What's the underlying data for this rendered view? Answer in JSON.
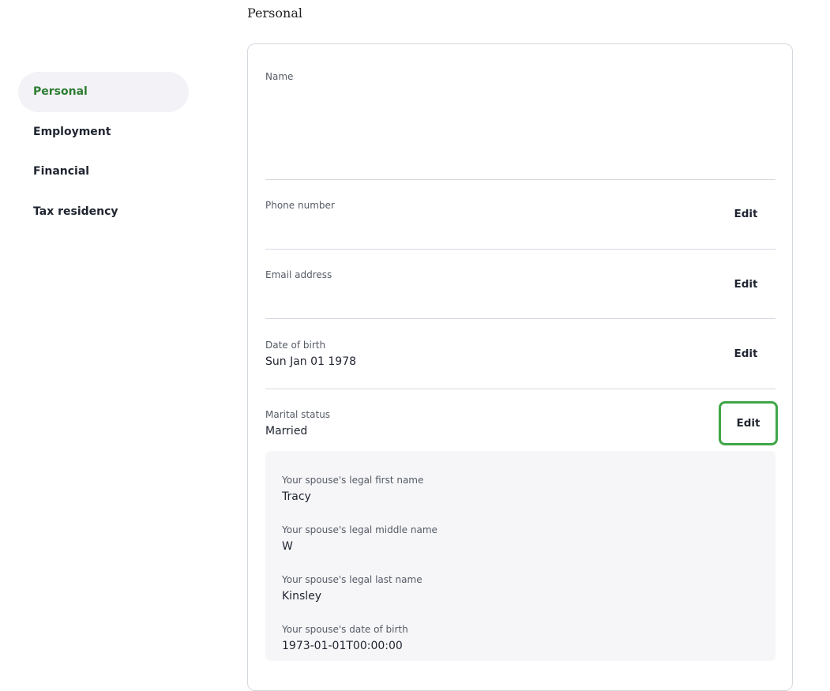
{
  "page_title": "Personal",
  "sidebar": {
    "items": [
      {
        "label": "Personal",
        "active": true
      },
      {
        "label": "Employment"
      },
      {
        "label": "Financial"
      },
      {
        "label": "Tax residency"
      }
    ]
  },
  "fields": {
    "name": {
      "label": "Name"
    },
    "phone": {
      "label": "Phone number",
      "edit": "Edit"
    },
    "email": {
      "label": "Email address",
      "edit": "Edit"
    },
    "dob": {
      "label": "Date of birth",
      "value": "Sun Jan 01 1978",
      "edit": "Edit"
    },
    "marital": {
      "label": "Marital status",
      "value": "Married",
      "edit": "Edit"
    }
  },
  "spouse": [
    {
      "label": "Your spouse's legal first name",
      "value": "Tracy"
    },
    {
      "label": "Your spouse's legal middle name",
      "value": "W"
    },
    {
      "label": "Your spouse's legal last name",
      "value": "Kinsley"
    },
    {
      "label": "Your spouse's date of birth",
      "value": "1973-01-01T00:00:00"
    }
  ],
  "colors": {
    "accent": "#2e7d32",
    "focus": "#3fa648"
  }
}
